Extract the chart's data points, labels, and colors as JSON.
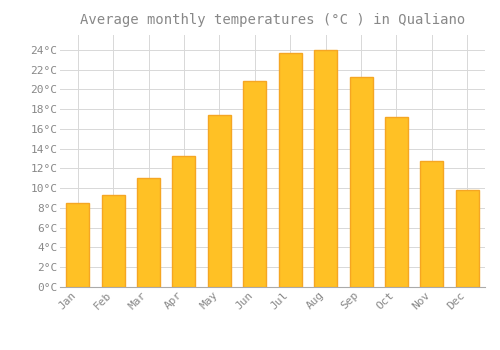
{
  "title": "Average monthly temperatures (°C ) in Qualiano",
  "months": [
    "Jan",
    "Feb",
    "Mar",
    "Apr",
    "May",
    "Jun",
    "Jul",
    "Aug",
    "Sep",
    "Oct",
    "Nov",
    "Dec"
  ],
  "values": [
    8.5,
    9.3,
    11.0,
    13.3,
    17.4,
    20.8,
    23.7,
    24.0,
    21.3,
    17.2,
    12.8,
    9.8
  ],
  "bar_color": "#FFC125",
  "bar_edge_color": "#F5A623",
  "background_color": "#FFFFFF",
  "grid_color": "#D8D8D8",
  "text_color": "#888888",
  "ylim": [
    0,
    25.5
  ],
  "yticks": [
    0,
    2,
    4,
    6,
    8,
    10,
    12,
    14,
    16,
    18,
    20,
    22,
    24
  ],
  "ytick_labels": [
    "0°C",
    "2°C",
    "4°C",
    "6°C",
    "8°C",
    "10°C",
    "12°C",
    "14°C",
    "16°C",
    "18°C",
    "20°C",
    "22°C",
    "24°C"
  ],
  "title_fontsize": 10,
  "tick_fontsize": 8,
  "bar_width": 0.65
}
